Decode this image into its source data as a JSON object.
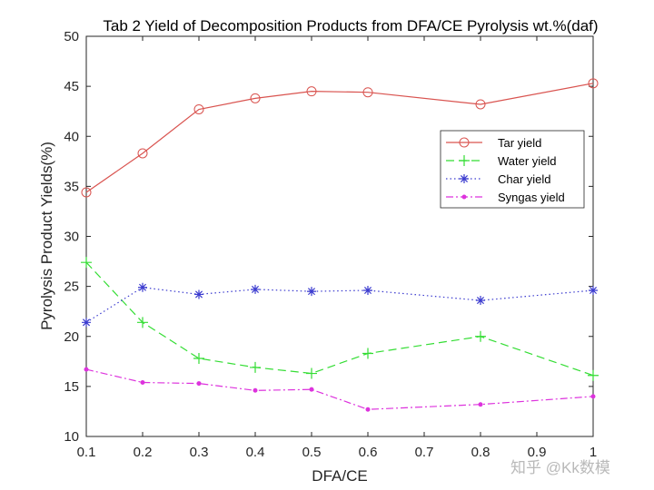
{
  "chart_data": {
    "type": "line",
    "title": "Tab 2 Yield of Decomposition Products from DFA/CE Pyrolysis wt.%(daf)",
    "xlabel": "DFA/CE",
    "ylabel": "Pyrolysis Product Yields(%)",
    "xlim": [
      0.1,
      1.0
    ],
    "ylim": [
      10,
      50
    ],
    "xticks": [
      0.1,
      0.2,
      0.3,
      0.4,
      0.5,
      0.6,
      0.7,
      0.8,
      0.9,
      1.0
    ],
    "xtick_labels": [
      "0.1",
      "0.2",
      "0.3",
      "0.4",
      "0.5",
      "0.6",
      "0.7",
      "0.8",
      "0.9",
      "1"
    ],
    "yticks": [
      10,
      15,
      20,
      25,
      30,
      35,
      40,
      45,
      50
    ],
    "ytick_labels": [
      "10",
      "15",
      "20",
      "25",
      "30",
      "35",
      "40",
      "45",
      "50"
    ],
    "grid": false,
    "legend_position": "upper-right",
    "x": [
      0.1,
      0.2,
      0.3,
      0.4,
      0.5,
      0.6,
      0.8,
      1.0
    ],
    "series": [
      {
        "name": "Tar yield",
        "color": "#d9534f",
        "line": "solid",
        "marker": "circle",
        "values": [
          34.4,
          38.3,
          42.7,
          43.8,
          44.5,
          44.4,
          43.2,
          45.3
        ]
      },
      {
        "name": "Water yield",
        "color": "#33dd33",
        "line": "dashed",
        "marker": "plus",
        "values": [
          27.4,
          21.4,
          17.8,
          16.9,
          16.3,
          18.3,
          20.0,
          16.1
        ]
      },
      {
        "name": "Char yield",
        "color": "#3b3bcf",
        "line": "dotted",
        "marker": "asterisk",
        "values": [
          21.4,
          24.9,
          24.2,
          24.7,
          24.5,
          24.6,
          23.6,
          24.6
        ]
      },
      {
        "name": "Syngas yield",
        "color": "#dd33dd",
        "line": "dashdot",
        "marker": "dot",
        "values": [
          16.7,
          15.4,
          15.3,
          14.6,
          14.7,
          12.7,
          13.2,
          14.0
        ]
      }
    ]
  },
  "watermark": "知乎 @Kk数模"
}
